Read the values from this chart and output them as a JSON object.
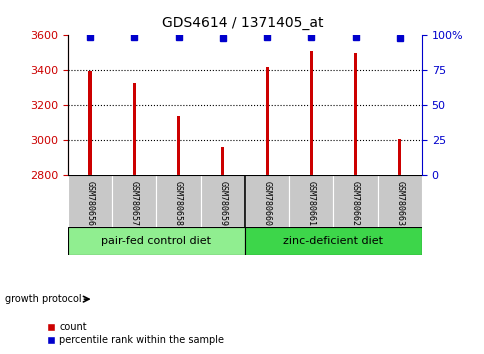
{
  "title": "GDS4614 / 1371405_at",
  "samples": [
    "GSM780656",
    "GSM780657",
    "GSM780658",
    "GSM780659",
    "GSM780660",
    "GSM780661",
    "GSM780662",
    "GSM780663"
  ],
  "counts": [
    3395,
    3330,
    3140,
    2960,
    3420,
    3510,
    3500,
    3005
  ],
  "percentiles": [
    99,
    99,
    99,
    98,
    99,
    99,
    99,
    98
  ],
  "ylim_left": [
    2800,
    3600
  ],
  "ylim_right": [
    0,
    100
  ],
  "yticks_left": [
    2800,
    3000,
    3200,
    3400,
    3600
  ],
  "yticks_right": [
    0,
    25,
    50,
    75,
    100
  ],
  "ytick_labels_right": [
    "0",
    "25",
    "50",
    "75",
    "100%"
  ],
  "bar_color": "#CC0000",
  "dot_color": "#0000CC",
  "group1_label": "pair-fed control diet",
  "group2_label": "zinc-deficient diet",
  "group_label_prefix": "growth protocol",
  "legend_count_label": "count",
  "legend_pct_label": "percentile rank within the sample",
  "group1_bg": "#90EE90",
  "group2_bg": "#3DD64A",
  "sample_bg": "#C8C8C8",
  "bar_width": 0.07,
  "grid_color": "#000000",
  "title_fontsize": 10,
  "tick_fontsize": 8,
  "sample_fontsize": 6,
  "group_fontsize": 8,
  "legend_fontsize": 7
}
